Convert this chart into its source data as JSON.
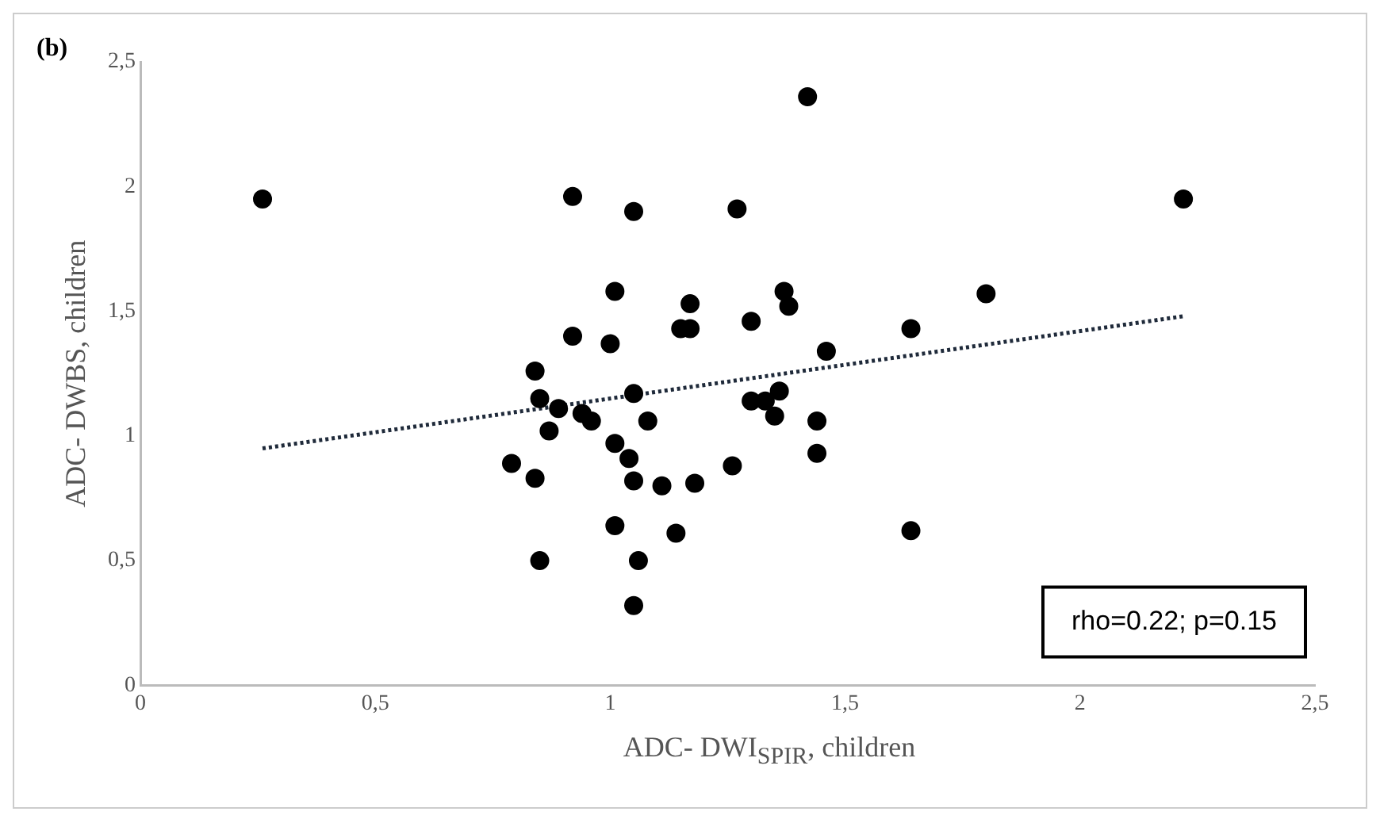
{
  "chart_data": {
    "type": "scatter",
    "xlabel": "ADC- DWI$_{SPIR}$, children",
    "ylabel": "ADC- DWBS, children",
    "annotations": [
      "(b)",
      "rho=0.22; p=0.15"
    ],
    "xlim": [
      0,
      2.5
    ],
    "xticks": [
      0,
      {
        "value": 0.5,
        "label": "0,5"
      },
      1,
      {
        "value": 1.5,
        "label": "1,5"
      },
      2,
      {
        "value": 2.5,
        "label": "2,5"
      }
    ],
    "ylim": [
      0,
      2.5
    ],
    "yticks": [
      0,
      {
        "value": 0.5,
        "label": "0,5"
      },
      1,
      {
        "value": 1.5,
        "label": "1,5"
      },
      2,
      {
        "value": 2.5,
        "label": "2,5"
      }
    ],
    "grid": false,
    "legend": false,
    "marker": "circle",
    "series": [
      {
        "color": "#000000",
        "x": [
          0.26,
          1.42,
          0.92,
          1.05,
          1.27,
          1.01,
          1.17,
          1.37,
          1.38,
          1.15,
          1.17,
          1.3,
          1.64,
          0.92,
          1.0,
          1.46,
          0.84,
          0.85,
          0.89,
          1.05,
          0.94,
          0.96,
          0.87,
          1.08,
          1.3,
          1.36,
          1.33,
          1.35,
          1.44,
          1.44,
          1.01,
          1.04,
          1.05,
          1.11,
          1.18,
          1.26,
          0.79,
          0.84,
          1.01,
          1.14,
          1.64,
          0.85,
          1.06,
          1.05,
          2.22,
          1.8
        ],
        "values": [
          1.95,
          2.36,
          1.96,
          1.9,
          1.91,
          1.58,
          1.53,
          1.58,
          1.52,
          1.43,
          1.43,
          1.46,
          1.43,
          1.4,
          1.37,
          1.34,
          1.26,
          1.15,
          1.11,
          1.17,
          1.09,
          1.06,
          1.02,
          1.06,
          1.14,
          1.18,
          1.14,
          1.08,
          1.06,
          0.93,
          0.97,
          0.91,
          0.82,
          0.8,
          0.81,
          0.88,
          0.89,
          0.83,
          0.64,
          0.61,
          0.62,
          0.5,
          0.5,
          0.32,
          1.95,
          1.57
        ]
      },
      {
        "type": "line",
        "color": "#1f2a3a",
        "line_style": "dotted",
        "marker": "none",
        "x": [
          0.26,
          2.22
        ],
        "values": [
          0.95,
          1.48
        ]
      }
    ]
  }
}
